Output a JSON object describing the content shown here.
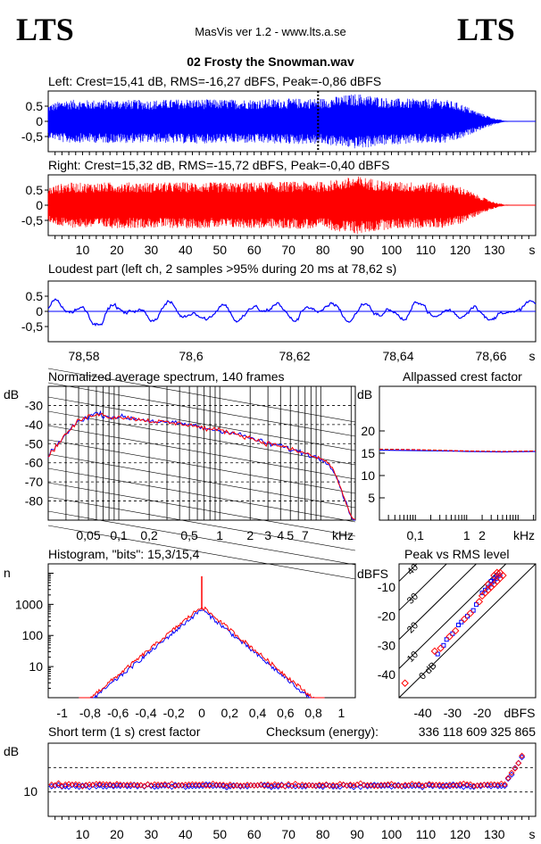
{
  "header": {
    "logo_left": "LTS",
    "logo_right": "LTS",
    "app_title": "MasVis ver 1.2 - www.lts.a.se",
    "file_title": "02 Frosty the Snowman.wav"
  },
  "colors": {
    "left": "#0000ff",
    "right": "#ff0000",
    "grid": "#000000"
  },
  "chart_data": [
    {
      "id": "left",
      "type": "line",
      "title": "Left: Crest=15,41 dB, RMS=-16,27 dBFS, Peak=-0,86 dBFS",
      "yticks": [
        "0.5",
        "0",
        "-0,5"
      ],
      "ylim": [
        -1,
        1
      ],
      "x_range_s": [
        0,
        142
      ],
      "envelope_peak": [
        [
          0,
          0.55
        ],
        [
          5,
          0.72
        ],
        [
          10,
          0.7
        ],
        [
          20,
          0.72
        ],
        [
          30,
          0.7
        ],
        [
          40,
          0.74
        ],
        [
          50,
          0.72
        ],
        [
          60,
          0.73
        ],
        [
          70,
          0.75
        ],
        [
          80,
          0.76
        ],
        [
          90,
          0.92
        ],
        [
          100,
          0.76
        ],
        [
          110,
          0.74
        ],
        [
          115,
          0.74
        ],
        [
          120,
          0.6
        ],
        [
          125,
          0.32
        ],
        [
          130,
          0.1
        ],
        [
          133,
          0.02
        ],
        [
          142,
          0.0
        ]
      ],
      "loudest_marker_s": 78.62
    },
    {
      "id": "right",
      "type": "line",
      "title": "Right: Crest=15,32 dB, RMS=-15,72 dBFS, Peak=-0,40 dBFS",
      "yticks": [
        "0.5",
        "0",
        "-0,5"
      ],
      "ylim": [
        -1,
        1
      ],
      "x_range_s": [
        0,
        142
      ],
      "envelope_peak": [
        [
          0,
          0.6
        ],
        [
          5,
          0.75
        ],
        [
          10,
          0.74
        ],
        [
          20,
          0.76
        ],
        [
          30,
          0.75
        ],
        [
          40,
          0.76
        ],
        [
          50,
          0.75
        ],
        [
          60,
          0.76
        ],
        [
          70,
          0.78
        ],
        [
          80,
          0.78
        ],
        [
          90,
          0.96
        ],
        [
          100,
          0.78
        ],
        [
          110,
          0.76
        ],
        [
          115,
          0.75
        ],
        [
          120,
          0.62
        ],
        [
          125,
          0.34
        ],
        [
          130,
          0.1
        ],
        [
          133,
          0.02
        ],
        [
          142,
          0.0
        ]
      ],
      "xticks": [
        "10",
        "20",
        "30",
        "40",
        "50",
        "60",
        "70",
        "80",
        "90",
        "100",
        "110",
        "120",
        "130",
        "s"
      ]
    },
    {
      "id": "loudest",
      "type": "line",
      "title": "Loudest part (left  ch, 2 samples >95% during 20 ms at 78,62 s)",
      "yticks": [
        "0.5",
        "0",
        "-0,5"
      ],
      "ylim": [
        -1,
        1
      ],
      "xlim": [
        78.57,
        78.675
      ],
      "xticks": [
        "78,58",
        "78,6",
        "78,62",
        "78,64",
        "78,66",
        "s"
      ]
    },
    {
      "id": "spectrum",
      "type": "line",
      "title": "Normalized average spectrum, 140 frames",
      "ylabel": "dB",
      "yticks": [
        "-30",
        "-40",
        "-50",
        "-60",
        "-70",
        "-80"
      ],
      "ylim": [
        -90,
        -20
      ],
      "xlabel": "kHz",
      "xticks": [
        "0,05",
        "0,1",
        "0,2",
        "0,5",
        "1",
        "2",
        "3",
        "4",
        "5",
        "7"
      ],
      "xlim_khz": [
        0.02,
        22
      ],
      "x_khz": [
        0.02,
        0.025,
        0.03,
        0.04,
        0.05,
        0.06,
        0.08,
        0.1,
        0.15,
        0.2,
        0.3,
        0.5,
        0.7,
        1,
        1.5,
        2,
        3,
        4,
        5,
        7,
        10,
        12,
        14,
        16,
        18,
        20,
        22
      ],
      "y_db": [
        -57,
        -50,
        -45,
        -38,
        -36,
        -34,
        -36,
        -36,
        -37,
        -38,
        -39,
        -40,
        -42,
        -43,
        -45,
        -47,
        -50,
        -51,
        -53,
        -55,
        -58,
        -60,
        -66,
        -74,
        -82,
        -88,
        -90
      ]
    },
    {
      "id": "crest",
      "type": "line",
      "title": "Allpassed crest factor",
      "ylabel": "dB",
      "yticks": [
        "20",
        "15",
        "10",
        "5"
      ],
      "ylim": [
        0,
        30
      ],
      "xlabel": "kHz",
      "xticks": [
        "0,1",
        "1",
        "2"
      ],
      "xlim_khz": [
        0.02,
        22
      ],
      "series": [
        {
          "x_khz": [
            0.02,
            0.1,
            0.5,
            1,
            5,
            22
          ],
          "y_db": [
            15.7,
            15.6,
            15.5,
            15.4,
            15.3,
            15.4
          ]
        },
        {
          "x_khz": [
            0.02,
            0.1,
            0.5,
            1,
            5,
            22
          ],
          "y_db": [
            15.9,
            15.8,
            15.6,
            15.5,
            15.4,
            15.5
          ]
        }
      ]
    },
    {
      "id": "histogram",
      "type": "line",
      "title": "Histogram, \"bits\": 15,3/15,4",
      "ylabel": "n",
      "yticks": [
        "1000",
        "100",
        "10"
      ],
      "ylog": true,
      "ylim": [
        1,
        20000
      ],
      "xticks": [
        "-1",
        "-0,8",
        "-0,6",
        "-0,4",
        "-0,2",
        "0",
        "0,2",
        "0,4",
        "0,6",
        "0,8",
        "1"
      ],
      "xlim": [
        -1.1,
        1.1
      ],
      "peak_at_zero": 8000
    },
    {
      "id": "peakrms",
      "type": "scatter",
      "title": "Peak vs RMS level",
      "ylabel": "dBFS",
      "yticks": [
        "-10",
        "-20",
        "-30",
        "-40"
      ],
      "ylim": [
        -48,
        -2
      ],
      "xlabel": "dBFS",
      "xticks": [
        "-40",
        "-30",
        "-20"
      ],
      "xlim": [
        -48,
        -2
      ],
      "diagonal_labels": [
        "40",
        "30",
        "20",
        "10",
        "0 dB"
      ],
      "points_left": [
        [
          -35,
          -33
        ],
        [
          -33,
          -30
        ],
        [
          -32,
          -28
        ],
        [
          -30,
          -26
        ],
        [
          -28,
          -23
        ],
        [
          -27,
          -22
        ],
        [
          -25,
          -20
        ],
        [
          -23,
          -18
        ],
        [
          -22,
          -16
        ],
        [
          -20,
          -12
        ],
        [
          -19,
          -11
        ],
        [
          -18,
          -10
        ],
        [
          -17,
          -9
        ],
        [
          -17,
          -8
        ],
        [
          -16,
          -8
        ],
        [
          -16,
          -7
        ],
        [
          -15,
          -7
        ],
        [
          -15,
          -6
        ],
        [
          -14,
          -6
        ]
      ],
      "points_right": [
        [
          -46,
          -43
        ],
        [
          -36,
          -32
        ],
        [
          -34,
          -31
        ],
        [
          -31,
          -27
        ],
        [
          -29,
          -25
        ],
        [
          -26,
          -21
        ],
        [
          -24,
          -19
        ],
        [
          -21,
          -15
        ],
        [
          -20,
          -13
        ],
        [
          -19,
          -12
        ],
        [
          -18,
          -11
        ],
        [
          -18,
          -9
        ],
        [
          -17,
          -10
        ],
        [
          -16,
          -9
        ],
        [
          -16,
          -6
        ],
        [
          -15,
          -8
        ],
        [
          -15,
          -5
        ],
        [
          -14,
          -7
        ],
        [
          -14,
          -5
        ],
        [
          -13,
          -6
        ]
      ]
    },
    {
      "id": "shortcrest",
      "type": "scatter",
      "title": "Short term (1 s) crest factor",
      "checksum_label": "Checksum (energy):",
      "checksum_value": "336 118 609 325 865",
      "ylabel": "dB",
      "yticks": [
        "10"
      ],
      "ylim": [
        0,
        30
      ],
      "xticks": [
        "10",
        "20",
        "30",
        "40",
        "50",
        "60",
        "70",
        "80",
        "90",
        "100",
        "110",
        "120",
        "130",
        "s"
      ],
      "x_range_s": [
        0,
        142
      ],
      "ref_lines_db": [
        10,
        20
      ]
    }
  ]
}
